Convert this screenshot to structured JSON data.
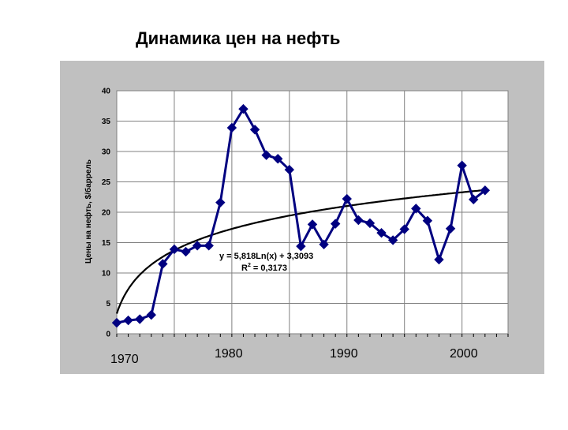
{
  "page": {
    "title": "Динамика цен на нефть"
  },
  "chart_data": {
    "type": "line",
    "title": "Динамика цен на нефть",
    "ylabel": "Цены на нефть, $/баррель",
    "xlabel": "",
    "ylim": [
      0,
      40
    ],
    "xlim": [
      1970,
      2004
    ],
    "y_ticks": [
      "0",
      "5",
      "10",
      "15",
      "20",
      "25",
      "30",
      "35",
      "40"
    ],
    "x_year_labels": [
      "1970",
      "1980",
      "1990",
      "2000"
    ],
    "grid": true,
    "series": [
      {
        "x": [
          1970,
          1971,
          1972,
          1973,
          1974,
          1975,
          1976,
          1977,
          1978,
          1979,
          1980,
          1981,
          1982,
          1983,
          1984,
          1985,
          1986,
          1987,
          1988,
          1989,
          1990,
          1991,
          1992,
          1993,
          1994,
          1995,
          1996,
          1997,
          1998,
          1999,
          2000,
          2001,
          2002
        ],
        "values": [
          1.8,
          2.2,
          2.4,
          3.1,
          11.5,
          13.9,
          13.5,
          14.5,
          14.5,
          21.6,
          33.9,
          37.0,
          33.6,
          29.4,
          28.8,
          27.0,
          14.4,
          18.0,
          14.7,
          18.1,
          22.2,
          18.7,
          18.2,
          16.6,
          15.4,
          17.2,
          20.6,
          18.6,
          12.2,
          17.3,
          27.7,
          22.1,
          23.6
        ],
        "color": "#000080",
        "marker": "diamond"
      }
    ],
    "trendline": {
      "type": "logarithmic",
      "a": 5.818,
      "b": 3.3093,
      "color": "#000000",
      "equation_label": "y = 5,818Ln(x) + 3,3093",
      "r2_prefix": "R",
      "r2_exp": "2",
      "r2_value": " = 0,3173"
    },
    "colors": {
      "plot_background": "#ffffff",
      "frame_background": "#c0c0c0",
      "grid": "#808080"
    }
  }
}
